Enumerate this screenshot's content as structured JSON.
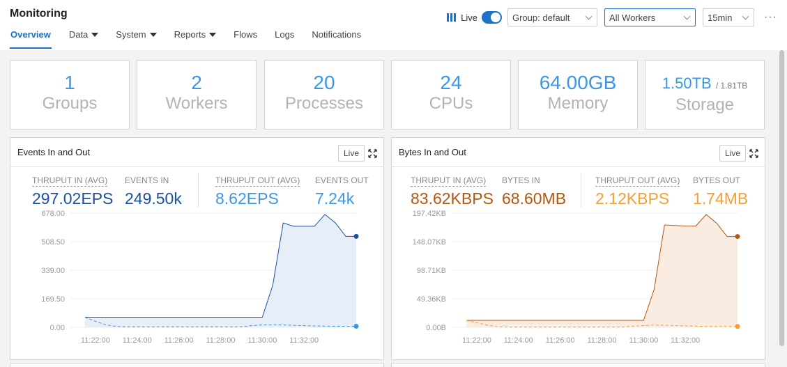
{
  "header": {
    "title": "Monitoring",
    "live_label": "Live",
    "group_select": "Group: default",
    "workers_select": "All Workers",
    "time_select": "15min",
    "more": "···"
  },
  "nav": {
    "items": [
      {
        "label": "Overview",
        "active": true,
        "dropdown": false
      },
      {
        "label": "Data",
        "active": false,
        "dropdown": true
      },
      {
        "label": "System",
        "active": false,
        "dropdown": true
      },
      {
        "label": "Reports",
        "active": false,
        "dropdown": true
      },
      {
        "label": "Flows",
        "active": false,
        "dropdown": false
      },
      {
        "label": "Logs",
        "active": false,
        "dropdown": false
      },
      {
        "label": "Notifications",
        "active": false,
        "dropdown": false
      }
    ]
  },
  "stats": [
    {
      "value": "1",
      "label": "Groups"
    },
    {
      "value": "2",
      "label": "Workers"
    },
    {
      "value": "20",
      "label": "Processes"
    },
    {
      "value": "24",
      "label": "CPUs"
    },
    {
      "value": "64.00GB",
      "label": "Memory"
    },
    {
      "value": "1.50TB",
      "suffix": "/ 1.81TB",
      "label": "Storage"
    }
  ],
  "events_panel": {
    "title": "Events In and Out",
    "live_button": "Live",
    "in_color": "#1d4fa0",
    "out_color": "#3b97e3",
    "metrics": [
      {
        "label": "THRUPUT IN (AVG)",
        "value": "297.02EPS"
      },
      {
        "label": "EVENTS IN",
        "value": "249.50k"
      },
      {
        "label": "THRUPUT OUT (AVG)",
        "value": "8.62EPS"
      },
      {
        "label": "EVENTS OUT",
        "value": "7.24k"
      }
    ]
  },
  "bytes_panel": {
    "title": "Bytes In and Out",
    "live_button": "Live",
    "in_color": "#b5560f",
    "out_color": "#f5a031",
    "metrics": [
      {
        "label": "THRUPUT IN (AVG)",
        "value": "83.62KBPS"
      },
      {
        "label": "BYTES IN",
        "value": "68.60MB"
      },
      {
        "label": "THRUPUT OUT (AVG)",
        "value": "2.12KBPS"
      },
      {
        "label": "BYTES OUT",
        "value": "1.74MB"
      }
    ]
  },
  "chart_data": [
    {
      "type": "area",
      "y_ticks": [
        "678.00",
        "508.50",
        "339.00",
        "169.50",
        "0.00"
      ],
      "ylim": [
        0,
        678
      ],
      "x_ticks": [
        "11:22:00",
        "11:24:00",
        "11:26:00",
        "11:28:00",
        "11:30:00",
        "11:32:00"
      ],
      "x_minutes": [
        0,
        0.5,
        1,
        1.5,
        2,
        2.5,
        3,
        3.5,
        4,
        4.5,
        5,
        5.5,
        6,
        6.5,
        7,
        7.5,
        8,
        8.5,
        9,
        9.5,
        10,
        10.5,
        11,
        11.5,
        12,
        12.5,
        13
      ],
      "x_range_minutes": [
        -0.7,
        13
      ],
      "tick_minutes": [
        0.5,
        2.5,
        4.5,
        6.5,
        8.5,
        10.5
      ],
      "series": [
        {
          "values": [
            60,
            60,
            60,
            60,
            60,
            60,
            60,
            60,
            60,
            60,
            60,
            60,
            60,
            60,
            60,
            60,
            60,
            60,
            250,
            620,
            600,
            600,
            600,
            670,
            620,
            540,
            540
          ]
        },
        {
          "values": [
            60,
            35,
            15,
            5,
            3,
            3,
            3,
            3,
            3,
            3,
            3,
            3,
            3,
            3,
            3,
            3,
            10,
            15,
            16,
            14,
            12,
            10,
            8,
            7,
            6,
            6,
            6
          ]
        }
      ]
    },
    {
      "type": "area",
      "y_ticks": [
        "197.42KB",
        "148.07KB",
        "98.71KB",
        "49.36KB",
        "0.00B"
      ],
      "ylim": [
        0,
        197.42
      ],
      "x_ticks": [
        "11:22:00",
        "11:24:00",
        "11:26:00",
        "11:28:00",
        "11:30:00",
        "11:32:00"
      ],
      "x_minutes": [
        0,
        0.5,
        1,
        1.5,
        2,
        2.5,
        3,
        3.5,
        4,
        4.5,
        5,
        5.5,
        6,
        6.5,
        7,
        7.5,
        8,
        8.5,
        9,
        9.5,
        10,
        10.5,
        11,
        11.5,
        12,
        12.5,
        13
      ],
      "x_range_minutes": [
        -0.7,
        13
      ],
      "tick_minutes": [
        0.5,
        2.5,
        4.5,
        6.5,
        8.5,
        10.5
      ],
      "series": [
        {
          "values": [
            12,
            12,
            12,
            12,
            12,
            12,
            12,
            12,
            12,
            12,
            12,
            12,
            12,
            12,
            12,
            12,
            12,
            12,
            65,
            177,
            176,
            175,
            175,
            195,
            180,
            157,
            157
          ]
        },
        {
          "values": [
            12,
            8,
            4,
            1,
            0.5,
            0.5,
            0.5,
            0.5,
            0.5,
            0.5,
            0.5,
            0.5,
            0.5,
            0.5,
            0.5,
            0.5,
            2,
            3,
            4,
            3.5,
            3,
            2.5,
            2,
            1.5,
            1.5,
            1.5,
            1.5
          ]
        }
      ]
    }
  ]
}
